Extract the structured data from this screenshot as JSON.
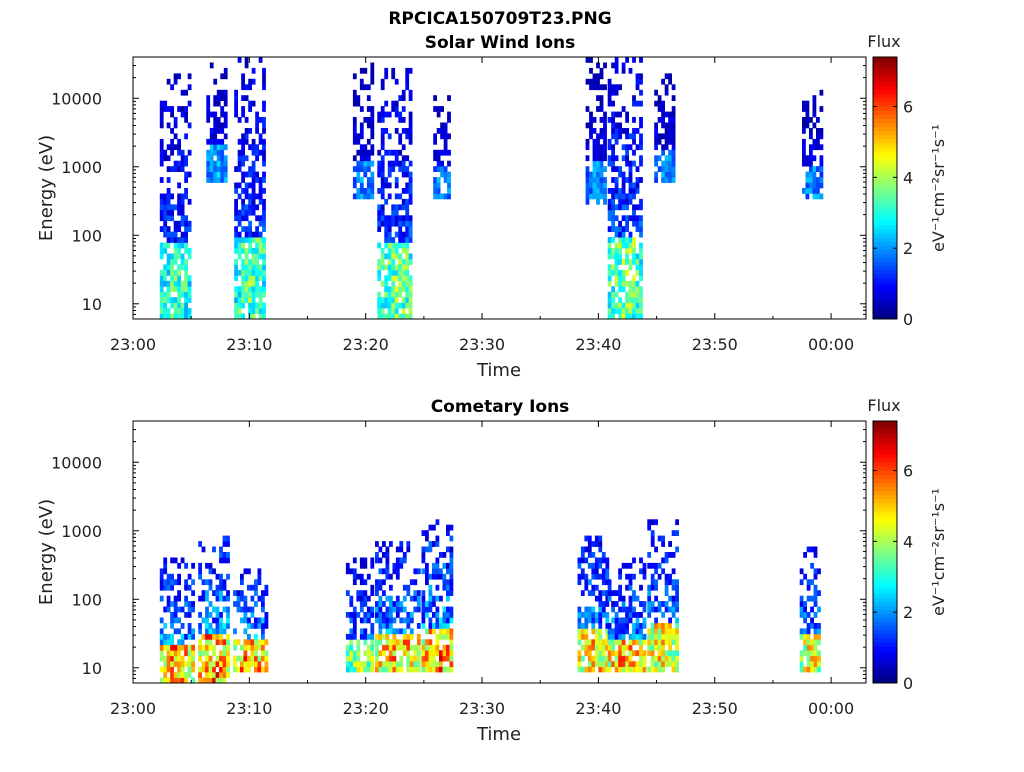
{
  "figure_title": "RPCICA150709T23.PNG",
  "chart_data": [
    {
      "type": "heatmap",
      "title": "Solar Wind Ions",
      "xlabel": "Time",
      "ylabel": "Energy (eV)",
      "yscale": "log",
      "ylim": [
        6,
        40000
      ],
      "xlim_minutes": [
        0,
        63
      ],
      "x_ticks": [
        "23:00",
        "23:10",
        "23:20",
        "23:30",
        "23:40",
        "23:50",
        "00:00"
      ],
      "y_ticks": [
        10,
        100,
        1000,
        10000
      ],
      "y_tick_labels": [
        "10",
        "100",
        "1000",
        "10000"
      ],
      "colorbar": {
        "title": "Flux",
        "label": "eV⁻¹cm⁻²sr⁻¹s⁻¹",
        "range": [
          0,
          7.4
        ],
        "ticks": [
          "0",
          "2",
          "4",
          "6"
        ]
      },
      "bursts": [
        {
          "t_start": 2.3,
          "t_end": 4.9,
          "e_min": 6,
          "e_max": 20000,
          "peak": 4.2
        },
        {
          "t_start": 6.3,
          "t_end": 8.0,
          "e_min": 600,
          "e_max": 30000,
          "peak": 2.8
        },
        {
          "t_start": 8.7,
          "t_end": 11.2,
          "e_min": 6,
          "e_max": 40000,
          "peak": 4.5
        },
        {
          "t_start": 18.9,
          "t_end": 20.5,
          "e_min": 300,
          "e_max": 30000,
          "peak": 2.5
        },
        {
          "t_start": 21.0,
          "t_end": 24.0,
          "e_min": 6,
          "e_max": 25000,
          "peak": 4.6
        },
        {
          "t_start": 25.8,
          "t_end": 27.3,
          "e_min": 300,
          "e_max": 14000,
          "peak": 2.6
        },
        {
          "t_start": 38.9,
          "t_end": 40.5,
          "e_min": 280,
          "e_max": 35000,
          "peak": 2.5
        },
        {
          "t_start": 40.8,
          "t_end": 43.5,
          "e_min": 6,
          "e_max": 40000,
          "peak": 4.8
        },
        {
          "t_start": 44.8,
          "t_end": 46.5,
          "e_min": 600,
          "e_max": 20000,
          "peak": 2.6
        },
        {
          "t_start": 57.5,
          "t_end": 59.0,
          "e_min": 300,
          "e_max": 12000,
          "peak": 2.6
        }
      ]
    },
    {
      "type": "heatmap",
      "title": "Cometary Ions",
      "xlabel": "Time",
      "ylabel": "Energy (eV)",
      "yscale": "log",
      "ylim": [
        6,
        40000
      ],
      "xlim_minutes": [
        0,
        63
      ],
      "x_ticks": [
        "23:00",
        "23:10",
        "23:20",
        "23:30",
        "23:40",
        "23:50",
        "00:00"
      ],
      "y_ticks": [
        10,
        100,
        1000,
        10000
      ],
      "y_tick_labels": [
        "10",
        "100",
        "1000",
        "10000"
      ],
      "colorbar": {
        "title": "Flux",
        "label": "eV⁻¹cm⁻²sr⁻¹s⁻¹",
        "range": [
          0,
          7.4
        ],
        "ticks": [
          "0",
          "2",
          "4",
          "6"
        ]
      },
      "bursts": [
        {
          "t_start": 2.3,
          "t_end": 5.0,
          "e_min": 6,
          "e_max": 350,
          "peak": 7.0
        },
        {
          "t_start": 5.6,
          "t_end": 8.1,
          "e_min": 6,
          "e_max": 800,
          "peak": 7.2
        },
        {
          "t_start": 8.6,
          "t_end": 11.5,
          "e_min": 8,
          "e_max": 250,
          "peak": 7.0
        },
        {
          "t_start": 18.3,
          "t_end": 20.6,
          "e_min": 8,
          "e_max": 400,
          "peak": 5.2
        },
        {
          "t_start": 20.8,
          "t_end": 24.6,
          "e_min": 8,
          "e_max": 600,
          "peak": 6.6
        },
        {
          "t_start": 24.8,
          "t_end": 27.5,
          "e_min": 8,
          "e_max": 1300,
          "peak": 7.0
        },
        {
          "t_start": 38.2,
          "t_end": 40.6,
          "e_min": 8,
          "e_max": 800,
          "peak": 6.6
        },
        {
          "t_start": 40.8,
          "t_end": 43.8,
          "e_min": 8,
          "e_max": 350,
          "peak": 6.8
        },
        {
          "t_start": 44.2,
          "t_end": 46.6,
          "e_min": 8,
          "e_max": 1400,
          "peak": 6.2
        },
        {
          "t_start": 57.3,
          "t_end": 59.0,
          "e_min": 8,
          "e_max": 550,
          "peak": 6.0
        }
      ]
    }
  ]
}
